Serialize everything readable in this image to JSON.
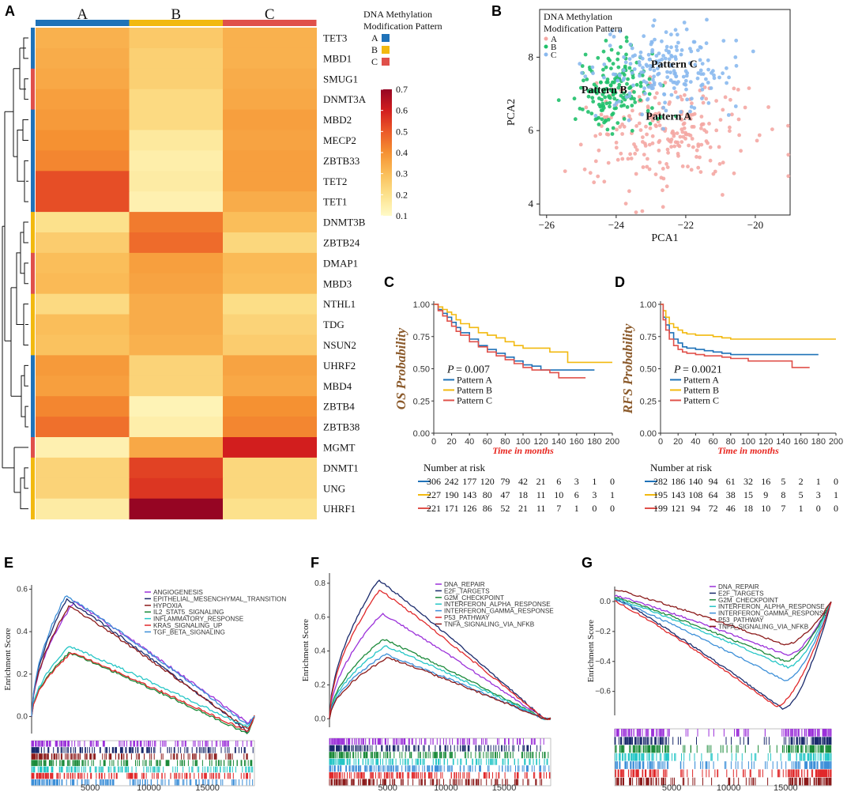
{
  "colors": {
    "pattern_a": "#1f72b8",
    "pattern_b": "#f2b90f",
    "pattern_c": "#e0504a",
    "pca_a": "#f4a7a3",
    "pca_b": "#1fc06a",
    "pca_c": "#8ab9ee",
    "axis_label_km": "#8b5a2b",
    "time_label": "#e8261f"
  },
  "panels": {
    "a": "A",
    "b": "B",
    "c": "C",
    "d": "D",
    "e": "E",
    "f": "F",
    "g": "G"
  },
  "chart_data": [
    {
      "panel": "A",
      "type": "heatmap",
      "columns": [
        "A",
        "B",
        "C"
      ],
      "rows": [
        "TET3",
        "MBD1",
        "SMUG1",
        "DNMT3A",
        "MBD2",
        "MECP2",
        "ZBTB33",
        "TET2",
        "TET1",
        "DNMT3B",
        "ZBTB24",
        "DMAP1",
        "MBD3",
        "NTHL1",
        "TDG",
        "NSUN2",
        "UHRF2",
        "MBD4",
        "ZBTB4",
        "ZBTB38",
        "MGMT",
        "DNMT1",
        "UNG",
        "UHRF1"
      ],
      "row_groups": [
        "A",
        "A",
        "C",
        "C",
        "A",
        "A",
        "A",
        "A",
        "A",
        "B",
        "B",
        "C",
        "C",
        "B",
        "B",
        "B",
        "A",
        "A",
        "A",
        "A",
        "C",
        "B",
        "B",
        "B"
      ],
      "values": [
        [
          0.33,
          0.27,
          0.33
        ],
        [
          0.34,
          0.25,
          0.33
        ],
        [
          0.35,
          0.25,
          0.34
        ],
        [
          0.37,
          0.22,
          0.35
        ],
        [
          0.38,
          0.22,
          0.37
        ],
        [
          0.4,
          0.17,
          0.36
        ],
        [
          0.42,
          0.15,
          0.37
        ],
        [
          0.52,
          0.16,
          0.37
        ],
        [
          0.52,
          0.14,
          0.34
        ],
        [
          0.2,
          0.44,
          0.3
        ],
        [
          0.26,
          0.47,
          0.23
        ],
        [
          0.3,
          0.37,
          0.31
        ],
        [
          0.31,
          0.36,
          0.3
        ],
        [
          0.22,
          0.34,
          0.21
        ],
        [
          0.3,
          0.34,
          0.24
        ],
        [
          0.29,
          0.33,
          0.26
        ],
        [
          0.38,
          0.24,
          0.36
        ],
        [
          0.37,
          0.24,
          0.35
        ],
        [
          0.42,
          0.13,
          0.4
        ],
        [
          0.46,
          0.15,
          0.42
        ],
        [
          0.14,
          0.35,
          0.6
        ],
        [
          0.24,
          0.54,
          0.23
        ],
        [
          0.24,
          0.56,
          0.23
        ],
        [
          0.16,
          0.7,
          0.2
        ]
      ],
      "legend_title": [
        "DNA Methylation",
        "Modification Pattern"
      ],
      "legend_entries": [
        "A",
        "B",
        "C"
      ],
      "colorbar_ticks": [
        "0.7",
        "0.6",
        "0.5",
        "0.4",
        "0.3",
        "0.2",
        "0.1"
      ],
      "colorbar_range": [
        0.1,
        0.7
      ]
    },
    {
      "panel": "B",
      "type": "scatter",
      "xlabel": "PCA1",
      "ylabel": "PCA2",
      "xlim": [
        -26.2,
        -19.0
      ],
      "ylim": [
        3.7,
        9.3
      ],
      "xticks": [
        -26,
        -24,
        -22,
        -20
      ],
      "xtick_labels": [
        "−26",
        "−24",
        "−22",
        "−20"
      ],
      "yticks": [
        4,
        6,
        8
      ],
      "ytick_labels": [
        "4",
        "6",
        "8"
      ],
      "legend_title": [
        "DNA Methylation",
        "Modification Pattern"
      ],
      "legend_entries": [
        "A",
        "B",
        "C"
      ],
      "annotations": [
        "Pattern C",
        "Pattern B",
        "Pattern A"
      ],
      "series": [
        {
          "name": "A",
          "center": [
            -22.6,
            5.9
          ],
          "spread": [
            1.15,
            0.75
          ],
          "count": 230
        },
        {
          "name": "B",
          "center": [
            -24.0,
            7.15
          ],
          "spread": [
            0.55,
            0.55
          ],
          "count": 170
        },
        {
          "name": "C",
          "center": [
            -22.6,
            7.6
          ],
          "spread": [
            1.0,
            0.6
          ],
          "count": 200
        }
      ]
    },
    {
      "panel": "C",
      "type": "line",
      "ylabel": "OS Probability",
      "xlabel": "Time in months",
      "xlim": [
        0,
        200
      ],
      "ylim": [
        0,
        1
      ],
      "xticks": [
        0,
        20,
        40,
        60,
        80,
        100,
        120,
        140,
        160,
        180,
        200
      ],
      "yticks": [
        "0.00",
        "0.25",
        "0.50",
        "0.75",
        "1.00"
      ],
      "pvalue_prefix": "P",
      "pvalue": "= 0.007",
      "risk_title": "Number at risk",
      "series": [
        {
          "name": "Pattern A",
          "x": [
            0,
            5,
            10,
            15,
            20,
            25,
            30,
            40,
            50,
            60,
            70,
            80,
            90,
            100,
            110,
            120,
            130,
            140,
            150,
            160,
            170,
            180
          ],
          "y": [
            1,
            0.96,
            0.93,
            0.9,
            0.86,
            0.82,
            0.78,
            0.73,
            0.68,
            0.65,
            0.62,
            0.59,
            0.56,
            0.53,
            0.52,
            0.49,
            0.49,
            0.49,
            0.49,
            0.49,
            0.49,
            0.49
          ],
          "risk": [
            "306",
            "242",
            "177",
            "120",
            "79",
            "42",
            "21",
            "6",
            "3",
            "1",
            "0"
          ]
        },
        {
          "name": "Pattern B",
          "x": [
            0,
            5,
            10,
            15,
            20,
            25,
            30,
            40,
            50,
            60,
            70,
            80,
            90,
            100,
            110,
            120,
            130,
            140,
            150,
            160,
            170,
            180,
            190,
            200
          ],
          "y": [
            1,
            0.98,
            0.96,
            0.94,
            0.92,
            0.88,
            0.85,
            0.82,
            0.78,
            0.76,
            0.74,
            0.71,
            0.68,
            0.66,
            0.66,
            0.66,
            0.63,
            0.63,
            0.55,
            0.55,
            0.55,
            0.55,
            0.55,
            0.55
          ],
          "risk": [
            "227",
            "190",
            "143",
            "80",
            "47",
            "18",
            "11",
            "10",
            "6",
            "3",
            "1"
          ]
        },
        {
          "name": "Pattern C",
          "x": [
            0,
            5,
            10,
            15,
            20,
            25,
            30,
            40,
            50,
            60,
            70,
            80,
            90,
            100,
            110,
            120,
            130,
            140,
            150,
            160,
            170
          ],
          "y": [
            1,
            0.95,
            0.91,
            0.87,
            0.83,
            0.79,
            0.76,
            0.71,
            0.67,
            0.63,
            0.6,
            0.57,
            0.54,
            0.51,
            0.49,
            0.49,
            0.47,
            0.43,
            0.43,
            0.43,
            0.43
          ],
          "risk": [
            "221",
            "171",
            "126",
            "86",
            "52",
            "21",
            "11",
            "7",
            "1",
            "0",
            "0"
          ]
        }
      ]
    },
    {
      "panel": "D",
      "type": "line",
      "ylabel": "RFS Probability",
      "xlabel": "Time in months",
      "xlim": [
        0,
        200
      ],
      "ylim": [
        0,
        1
      ],
      "xticks": [
        0,
        20,
        40,
        60,
        80,
        100,
        120,
        140,
        160,
        180,
        200
      ],
      "yticks": [
        "0.00",
        "0.25",
        "0.50",
        "0.75",
        "1.00"
      ],
      "pvalue_prefix": "P",
      "pvalue": "= 0.0021",
      "risk_title": "Number at risk",
      "series": [
        {
          "name": "Pattern A",
          "x": [
            0,
            3,
            6,
            10,
            15,
            20,
            25,
            30,
            40,
            50,
            60,
            70,
            80,
            100,
            120,
            140,
            160,
            180
          ],
          "y": [
            1,
            0.9,
            0.84,
            0.78,
            0.73,
            0.7,
            0.67,
            0.66,
            0.65,
            0.64,
            0.63,
            0.62,
            0.61,
            0.61,
            0.61,
            0.61,
            0.61,
            0.61
          ],
          "risk": [
            "282",
            "186",
            "140",
            "94",
            "61",
            "32",
            "16",
            "5",
            "2",
            "1",
            "0"
          ]
        },
        {
          "name": "Pattern B",
          "x": [
            0,
            3,
            6,
            10,
            15,
            20,
            25,
            30,
            40,
            50,
            60,
            70,
            80,
            100,
            120,
            140,
            160,
            180,
            200
          ],
          "y": [
            1,
            0.95,
            0.9,
            0.85,
            0.82,
            0.8,
            0.78,
            0.77,
            0.76,
            0.76,
            0.75,
            0.74,
            0.73,
            0.73,
            0.73,
            0.73,
            0.73,
            0.73,
            0.73
          ],
          "risk": [
            "195",
            "143",
            "108",
            "64",
            "38",
            "15",
            "9",
            "8",
            "5",
            "3",
            "1"
          ]
        },
        {
          "name": "Pattern C",
          "x": [
            0,
            3,
            6,
            10,
            15,
            20,
            25,
            30,
            40,
            50,
            60,
            70,
            80,
            100,
            120,
            140,
            150,
            160,
            170
          ],
          "y": [
            1,
            0.88,
            0.8,
            0.73,
            0.68,
            0.65,
            0.63,
            0.62,
            0.61,
            0.6,
            0.6,
            0.59,
            0.58,
            0.56,
            0.56,
            0.56,
            0.51,
            0.51,
            0.51
          ],
          "risk": [
            "199",
            "121",
            "94",
            "72",
            "46",
            "18",
            "10",
            "7",
            "1",
            "0",
            "0"
          ]
        }
      ]
    },
    {
      "panel": "E",
      "type": "line",
      "ylabel": "Enrichment Score",
      "xlim": [
        0,
        19000
      ],
      "ylim": [
        -0.08,
        0.62
      ],
      "xticks": [
        5000,
        10000,
        15000
      ],
      "yticks": [
        0.0,
        0.2,
        0.4,
        0.6
      ],
      "ytick_labels": [
        "0.0",
        "0.2",
        "0.4",
        "0.6"
      ],
      "series": [
        {
          "name": "ANGIOGENESIS",
          "color": "#9b30d9",
          "peak": 0.54,
          "peak_x": 3600,
          "end_min": -0.03
        },
        {
          "name": "EPITHELIAL_MESENCHYMAL_TRANSITION",
          "color": "#1a2a6c",
          "peak": 0.55,
          "peak_x": 3000,
          "end_min": -0.07
        },
        {
          "name": "HYPOXIA",
          "color": "#8b1a1a",
          "peak": 0.52,
          "peak_x": 3200,
          "end_min": -0.06
        },
        {
          "name": "IL2_STAT5_SIGNALING",
          "color": "#1b8a3a",
          "peak": 0.3,
          "peak_x": 3200,
          "end_min": -0.08
        },
        {
          "name": "INFLAMMATORY_RESPONSE",
          "color": "#26c6c6",
          "peak": 0.33,
          "peak_x": 3200,
          "end_min": -0.05
        },
        {
          "name": "KRAS_SIGNALING_UP",
          "color": "#e0282a",
          "peak": 0.3,
          "peak_x": 3400,
          "end_min": -0.07
        },
        {
          "name": "TGF_BETA_SIGNALING",
          "color": "#3c8fd8",
          "peak": 0.57,
          "peak_x": 2900,
          "end_min": -0.04
        }
      ]
    },
    {
      "panel": "F",
      "type": "line",
      "ylabel": "Enrichment Score",
      "xlim": [
        0,
        19000
      ],
      "ylim": [
        -0.05,
        0.86
      ],
      "xticks": [
        5000,
        10000,
        15000
      ],
      "yticks": [
        0.0,
        0.2,
        0.4,
        0.6,
        0.8
      ],
      "ytick_labels": [
        "0.0",
        "0.2",
        "0.4",
        "0.6",
        "0.8"
      ],
      "series": [
        {
          "name": "DNA_REPAIR",
          "color": "#9b30d9",
          "peak": 0.62,
          "peak_x": 4500,
          "end_min": 0.0
        },
        {
          "name": "E2F_TARGETS",
          "color": "#1a2a6c",
          "peak": 0.82,
          "peak_x": 4200,
          "end_min": 0.0
        },
        {
          "name": "G2M_CHECKPOINT",
          "color": "#1b8a3a",
          "peak": 0.47,
          "peak_x": 4600,
          "end_min": 0.0
        },
        {
          "name": "INTERFERON_ALPHA_RESPONSE",
          "color": "#26c6c6",
          "peak": 0.43,
          "peak_x": 4800,
          "end_min": 0.0
        },
        {
          "name": "INTERFERON_GAMMA_RESPONSE",
          "color": "#3c8fd8",
          "peak": 0.38,
          "peak_x": 4800,
          "end_min": 0.0
        },
        {
          "name": "P53_PATHWAY",
          "color": "#e0282a",
          "peak": 0.76,
          "peak_x": 4300,
          "end_min": 0.0
        },
        {
          "name": "TNFA_SIGNALING_VIA_NFKB",
          "color": "#8b1a1a",
          "peak": 0.36,
          "peak_x": 5000,
          "end_min": 0.0
        }
      ]
    },
    {
      "panel": "G",
      "type": "line",
      "ylabel": "Enrichment Score",
      "xlim": [
        0,
        19000
      ],
      "ylim": [
        -0.76,
        0.1
      ],
      "xticks": [
        5000,
        10000,
        15000
      ],
      "yticks": [
        0.0,
        -0.2,
        -0.4,
        -0.6
      ],
      "ytick_labels": [
        "0.0",
        "−0.2",
        "−0.4",
        "−0.6"
      ],
      "series": [
        {
          "name": "DNA_REPAIR",
          "color": "#9b30d9",
          "trough": -0.36,
          "trough_x": 15200,
          "start_max": 0.04
        },
        {
          "name": "E2F_TARGETS",
          "color": "#1a2a6c",
          "trough": -0.72,
          "trough_x": 14800,
          "start_max": 0.02
        },
        {
          "name": "G2M_CHECKPOINT",
          "color": "#1b8a3a",
          "trough": -0.4,
          "trough_x": 15000,
          "start_max": 0.03
        },
        {
          "name": "INTERFERON_ALPHA_RESPONSE",
          "color": "#26c6c6",
          "trough": -0.44,
          "trough_x": 15200,
          "start_max": 0.02
        },
        {
          "name": "INTERFERON_GAMMA_RESPONSE",
          "color": "#3c8fd8",
          "trough": -0.53,
          "trough_x": 15000,
          "start_max": 0.01
        },
        {
          "name": "P53_PATHWAY",
          "color": "#e0282a",
          "trough": -0.7,
          "trough_x": 14200,
          "start_max": 0.0
        },
        {
          "name": "TNFA_SIGNALING_VIA_NFKB",
          "color": "#8b1a1a",
          "trough": -0.29,
          "trough_x": 15000,
          "start_max": 0.08
        }
      ]
    }
  ]
}
